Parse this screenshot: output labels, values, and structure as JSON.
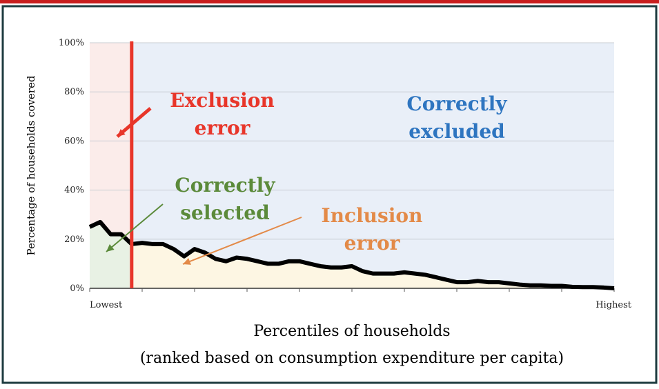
{
  "chart_data": {
    "type": "line",
    "y_label": "Percentage of households covered",
    "x_label": "Percentiles of households",
    "x_sublabel": "(ranked based on consumption expenditure per capita)",
    "x_end_labels": [
      "Lowest",
      "Highest"
    ],
    "xlim": [
      0,
      100
    ],
    "xticks": [
      0,
      10,
      20,
      30,
      40,
      50,
      60,
      70,
      80,
      90,
      100
    ],
    "ylim": [
      0,
      100
    ],
    "yticks": [
      {
        "value": 0,
        "label": "0%"
      },
      {
        "value": 20,
        "label": "20%"
      },
      {
        "value": 40,
        "label": "40%"
      },
      {
        "value": 60,
        "label": "60%"
      },
      {
        "value": 80,
        "label": "80%"
      },
      {
        "value": 100,
        "label": "100%"
      }
    ],
    "grid": true,
    "threshold": 8,
    "threshold_color": "#e8362a",
    "x": [
      0,
      2,
      4,
      6,
      8,
      10,
      12,
      14,
      16,
      18,
      20,
      22,
      24,
      26,
      28,
      30,
      32,
      34,
      36,
      38,
      40,
      42,
      44,
      46,
      48,
      50,
      52,
      54,
      56,
      58,
      60,
      62,
      64,
      66,
      68,
      70,
      72,
      74,
      76,
      78,
      80,
      82,
      84,
      86,
      88,
      90,
      92,
      94,
      96,
      98,
      100
    ],
    "series": [
      {
        "color": "#000000",
        "values": [
          25,
          27,
          22,
          22,
          18,
          18.5,
          18,
          18,
          16,
          13,
          16,
          14.5,
          12,
          11,
          12.5,
          12,
          11,
          10,
          10,
          11,
          11,
          10,
          9,
          8.5,
          8.5,
          9,
          7,
          6,
          6,
          6,
          6.5,
          6,
          5.5,
          4.5,
          3.5,
          2.5,
          2.5,
          3,
          2.5,
          2.5,
          2,
          1.5,
          1.2,
          1.2,
          1,
          1,
          0.6,
          0.5,
          0.5,
          0.3,
          0
        ]
      }
    ],
    "annotations": [
      {
        "lines": [
          "Exclusion",
          "error"
        ],
        "color": "#e8362a"
      },
      {
        "lines": [
          "Correctly",
          "excluded"
        ],
        "color": "#2e75c0"
      },
      {
        "lines": [
          "Correctly",
          "selected"
        ],
        "color": "#5b8a3a"
      },
      {
        "lines": [
          "Inclusion",
          "error"
        ],
        "color": "#e38a48"
      }
    ]
  }
}
